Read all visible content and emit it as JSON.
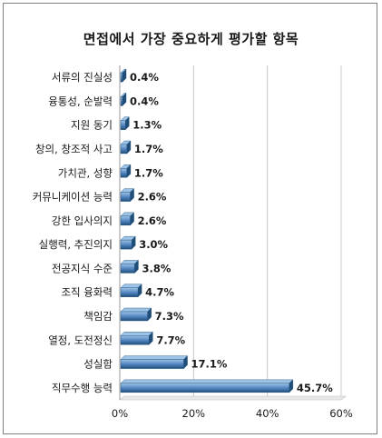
{
  "chart_data": {
    "type": "bar",
    "orientation": "horizontal",
    "title": "면접에서 가장 중요하게 평가할 항목",
    "categories": [
      "서류의 진실성",
      "융통성, 순발력",
      "지원 동기",
      "창의, 창조적 사고",
      "가치관, 성향",
      "커뮤니케이션 능력",
      "강한 입사의지",
      "실행력, 추진의지",
      "전공지식 수준",
      "조직 융화력",
      "책임감",
      "열정, 도전정신",
      "성실함",
      "직무수행 능력"
    ],
    "values": [
      0.4,
      0.4,
      1.3,
      1.7,
      1.7,
      2.6,
      2.6,
      3.0,
      3.8,
      4.7,
      7.3,
      7.7,
      17.1,
      45.7
    ],
    "data_labels": [
      "0.4%",
      "0.4%",
      "1.3%",
      "1.7%",
      "1.7%",
      "2.6%",
      "2.6%",
      "3.0%",
      "3.8%",
      "4.7%",
      "7.3%",
      "7.7%",
      "17.1%",
      "45.7%"
    ],
    "xlim": [
      0,
      60
    ],
    "xticks": [
      "0%",
      "20%",
      "40%",
      "60%"
    ],
    "xtick_values": [
      0,
      20,
      40,
      60
    ],
    "grid": true,
    "legend": "none",
    "colors": {
      "bar": "#4f81bd",
      "bar_light": "#9dc3e6",
      "bar_dark": "#1f4e79",
      "grid": "#c8c8c8"
    }
  }
}
